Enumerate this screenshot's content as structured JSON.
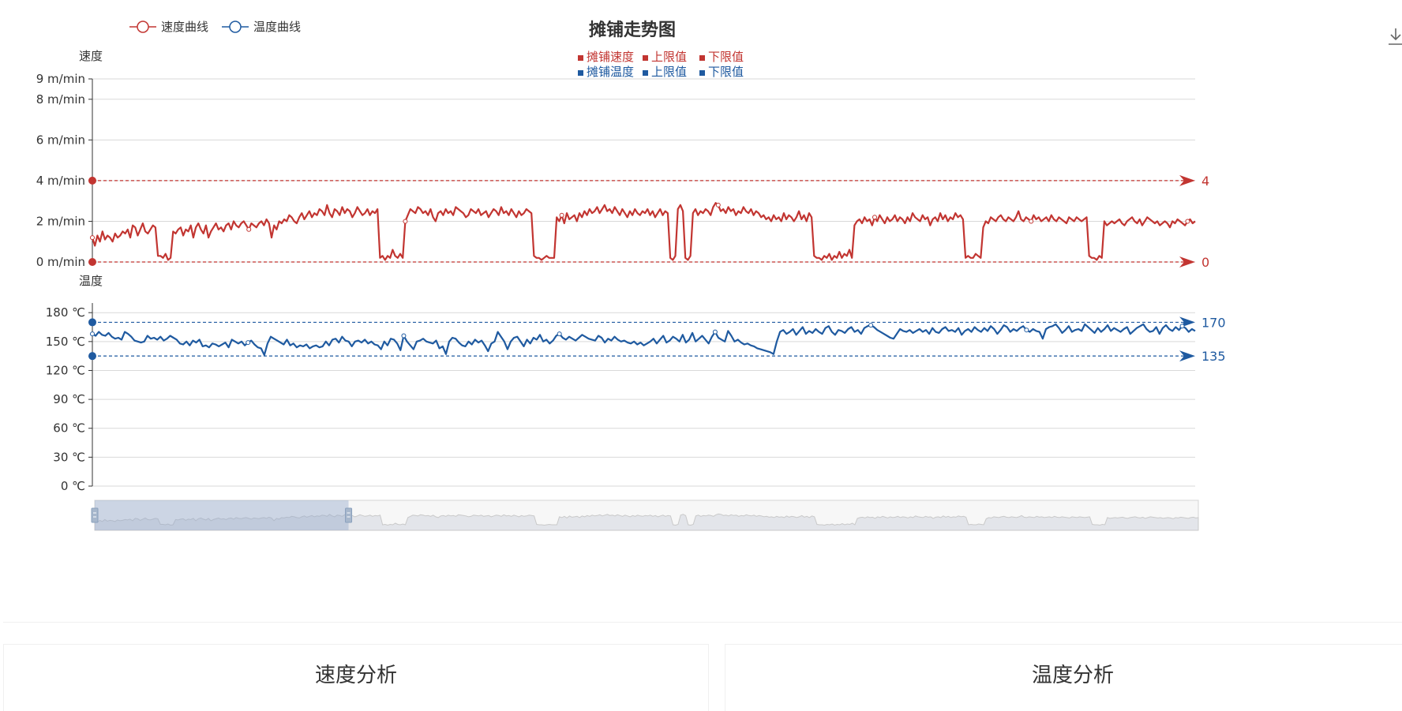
{
  "chart_data": {
    "type": "line",
    "title": "摊铺走势图",
    "legend": [
      {
        "label": "速度曲线",
        "color": "#c23531",
        "marker": "circle"
      },
      {
        "label": "温度曲线",
        "color": "#1f5aa0",
        "marker": "circle"
      }
    ],
    "legend_placement": "top-left",
    "limit_legend": {
      "speed": [
        "摊铺速度",
        "上限值",
        "下限值"
      ],
      "temperature": [
        "摊铺温度",
        "上限值",
        "下限值"
      ]
    },
    "grid": true,
    "dataZoom": {
      "start_fraction": 0.0,
      "end_fraction": 0.23
    },
    "speed": {
      "axis_label": "速度",
      "unit": "m/min",
      "ylim": [
        0,
        9
      ],
      "ticks": [
        {
          "value": 0,
          "label": "0 m/min"
        },
        {
          "value": 2,
          "label": "2 m/min"
        },
        {
          "value": 4,
          "label": "4 m/min"
        },
        {
          "value": 6,
          "label": "6 m/min"
        },
        {
          "value": 8,
          "label": "8 m/min"
        },
        {
          "value": 9,
          "label": "9 m/min"
        }
      ],
      "upper_limit": 4,
      "lower_limit": 0,
      "upper_label": "4",
      "lower_label": "0",
      "color": "#c23531",
      "values": [
        1.2,
        0.8,
        1.3,
        1.0,
        1.5,
        1.1,
        1.3,
        1.2,
        1.0,
        1.4,
        1.2,
        1.3,
        1.5,
        1.4,
        1.6,
        1.2,
        1.8,
        1.7,
        1.3,
        1.6,
        1.9,
        1.5,
        1.4,
        1.6,
        1.8,
        1.7,
        0.3,
        0.3,
        0.2,
        0.4,
        0.1,
        0.2,
        1.5,
        1.4,
        1.6,
        1.7,
        1.3,
        1.6,
        1.5,
        1.8,
        1.2,
        1.7,
        1.9,
        1.6,
        1.4,
        1.8,
        1.2,
        1.5,
        1.7,
        1.9,
        1.6,
        1.7,
        1.5,
        1.8,
        1.9,
        1.6,
        2.0,
        1.8,
        1.7,
        1.9,
        2.0,
        1.8,
        1.6,
        1.9,
        1.8,
        1.7,
        1.9,
        2.0,
        1.8,
        2.1,
        1.9,
        1.2,
        1.8,
        1.6,
        2.0,
        1.9,
        2.1,
        2.0,
        2.3,
        2.2,
        2.0,
        1.9,
        2.2,
        2.4,
        2.1,
        2.3,
        2.5,
        2.2,
        2.4,
        2.3,
        2.6,
        2.5,
        2.3,
        2.8,
        2.4,
        2.2,
        2.6,
        2.5,
        2.3,
        2.7,
        2.4,
        2.6,
        2.5,
        2.2,
        2.4,
        2.7,
        2.5,
        2.3,
        2.4,
        2.6,
        2.3,
        2.5,
        2.4,
        2.6,
        0.2,
        0.3,
        0.1,
        0.3,
        0.2,
        0.6,
        0.3,
        0.2,
        0.4,
        0.2,
        2.0,
        2.3,
        2.6,
        2.5,
        2.4,
        2.7,
        2.6,
        2.4,
        2.5,
        2.3,
        2.6,
        2.2,
        2.0,
        2.4,
        2.5,
        2.3,
        2.6,
        2.4,
        2.5,
        2.3,
        2.7,
        2.6,
        2.5,
        2.4,
        2.2,
        2.3,
        2.6,
        2.5,
        2.4,
        2.6,
        2.3,
        2.4,
        2.5,
        2.2,
        2.4,
        2.6,
        2.5,
        2.3,
        2.7,
        2.4,
        2.5,
        2.3,
        2.6,
        2.4,
        2.2,
        2.5,
        2.3,
        2.4,
        2.6,
        2.5,
        2.4,
        0.3,
        0.2,
        0.2,
        0.1,
        0.2,
        0.3,
        0.2,
        0.2,
        0.2,
        2.2,
        2.0,
        2.3,
        1.9,
        2.4,
        2.1,
        2.2,
        2.3,
        2.0,
        2.4,
        2.2,
        2.5,
        2.3,
        2.6,
        2.4,
        2.5,
        2.7,
        2.4,
        2.6,
        2.8,
        2.5,
        2.6,
        2.4,
        2.7,
        2.5,
        2.3,
        2.6,
        2.4,
        2.2,
        2.5,
        2.3,
        2.6,
        2.4,
        2.3,
        2.5,
        2.4,
        2.6,
        2.3,
        2.5,
        2.2,
        2.4,
        2.6,
        2.3,
        2.5,
        2.4,
        0.2,
        0.1,
        0.3,
        2.6,
        2.8,
        2.5,
        0.2,
        0.1,
        0.3,
        2.4,
        2.6,
        2.3,
        2.5,
        2.4,
        2.6,
        2.5,
        2.3,
        2.7,
        2.9,
        2.8,
        2.5,
        2.6,
        2.4,
        2.7,
        2.5,
        2.6,
        2.3,
        2.5,
        2.4,
        2.7,
        2.5,
        2.4,
        2.6,
        2.3,
        2.5,
        2.4,
        2.2,
        2.3,
        2.1,
        2.2,
        2.0,
        2.3,
        2.1,
        2.2,
        2.0,
        2.4,
        2.1,
        2.3,
        2.2,
        2.0,
        2.2,
        2.5,
        2.1,
        2.3,
        2.0,
        2.4,
        2.2,
        0.3,
        0.2,
        0.2,
        0.1,
        0.3,
        0.2,
        0.4,
        0.1,
        0.3,
        0.2,
        0.5,
        0.2,
        0.4,
        0.3,
        0.6,
        0.2,
        1.8,
        2.0,
        2.1,
        1.9,
        2.2,
        2.0,
        2.1,
        1.8,
        2.2,
        2.0,
        2.3,
        2.1,
        1.9,
        2.2,
        2.0,
        2.1,
        2.3,
        2.0,
        2.2,
        2.1,
        1.9,
        2.2,
        2.0,
        2.4,
        2.2,
        2.1,
        2.0,
        2.3,
        2.1,
        2.2,
        1.8,
        2.1,
        2.2,
        2.0,
        2.4,
        2.1,
        2.3,
        2.0,
        2.2,
        2.1,
        2.4,
        2.2,
        2.3,
        2.1,
        0.2,
        0.3,
        0.2,
        0.2,
        0.4,
        0.3,
        0.2,
        1.7,
        2.0,
        1.9,
        2.2,
        2.1,
        2.0,
        2.2,
        2.3,
        2.1,
        2.0,
        2.2,
        2.1,
        2.0,
        2.2,
        2.5,
        2.1,
        2.0,
        2.2,
        2.1,
        2.0,
        2.3,
        2.1,
        2.2,
        2.0,
        2.1,
        2.2,
        2.0,
        2.3,
        2.1,
        2.0,
        2.2,
        2.1,
        2.0,
        1.9,
        2.2,
        2.1,
        2.0,
        2.2,
        2.1,
        2.0,
        2.1,
        2.2,
        0.3,
        0.2,
        0.2,
        0.1,
        0.3,
        0.2,
        2.0,
        1.8,
        1.9,
        2.0,
        1.9,
        2.0,
        2.1,
        1.9,
        1.8,
        2.0,
        2.1,
        2.2,
        2.0,
        1.9,
        2.1,
        1.8,
        2.0,
        2.2,
        2.1,
        2.0,
        1.9,
        2.0,
        1.8,
        1.9,
        2.0,
        1.9,
        1.7,
        2.0,
        1.9,
        2.1,
        2.0,
        1.9,
        1.8,
        2.0,
        2.1,
        1.9,
        2.0
      ]
    },
    "temperature": {
      "axis_label": "温度",
      "unit": "℃",
      "ylim": [
        0,
        190
      ],
      "ticks": [
        {
          "value": 0,
          "label": "0 ℃"
        },
        {
          "value": 30,
          "label": "30 ℃"
        },
        {
          "value": 60,
          "label": "60 ℃"
        },
        {
          "value": 90,
          "label": "90 ℃"
        },
        {
          "value": 120,
          "label": "120 ℃"
        },
        {
          "value": 150,
          "label": "150 ℃"
        },
        {
          "value": 180,
          "label": "180 ℃"
        }
      ],
      "upper_limit": 170,
      "lower_limit": 135,
      "upper_label": "170",
      "lower_label": "135",
      "color": "#1f5aa0",
      "values": [
        158,
        156,
        160,
        157,
        156,
        159,
        155,
        153,
        154,
        152,
        160,
        158,
        155,
        151,
        150,
        149,
        150,
        156,
        153,
        154,
        152,
        155,
        151,
        153,
        156,
        154,
        152,
        148,
        147,
        150,
        146,
        151,
        149,
        152,
        145,
        146,
        144,
        148,
        147,
        145,
        147,
        149,
        144,
        152,
        150,
        148,
        150,
        146,
        149,
        151,
        147,
        144,
        143,
        136,
        148,
        155,
        153,
        151,
        149,
        147,
        152,
        146,
        148,
        144,
        146,
        145,
        147,
        143,
        145,
        146,
        144,
        145,
        150,
        146,
        152,
        153,
        149,
        155,
        151,
        150,
        145,
        150,
        151,
        149,
        152,
        148,
        150,
        147,
        146,
        142,
        150,
        146,
        153,
        152,
        148,
        141,
        156,
        150,
        146,
        142,
        150,
        151,
        153,
        150,
        149,
        148,
        151,
        143,
        145,
        137,
        150,
        154,
        153,
        149,
        146,
        145,
        150,
        147,
        152,
        149,
        151,
        146,
        140,
        148,
        150,
        160,
        155,
        150,
        142,
        150,
        154,
        155,
        150,
        145,
        152,
        148,
        154,
        152,
        157,
        150,
        152,
        148,
        151,
        156,
        158,
        154,
        152,
        155,
        153,
        151,
        154,
        157,
        155,
        153,
        152,
        151,
        156,
        154,
        149,
        153,
        151,
        155,
        152,
        150,
        151,
        149,
        148,
        150,
        147,
        149,
        146,
        148,
        150,
        153,
        148,
        152,
        156,
        149,
        151,
        155,
        153,
        150,
        157,
        149,
        152,
        159,
        150,
        153,
        156,
        152,
        148,
        155,
        160,
        154,
        152,
        150,
        161,
        156,
        150,
        152,
        149,
        147,
        148,
        146,
        145,
        143,
        142,
        141,
        140,
        139,
        137,
        150,
        160,
        162,
        158,
        160,
        163,
        157,
        161,
        165,
        158,
        161,
        159,
        163,
        160,
        158,
        164,
        166,
        160,
        157,
        162,
        161,
        159,
        163,
        165,
        160,
        162,
        158,
        164,
        166,
        167,
        165,
        162,
        160,
        158,
        156,
        154,
        153,
        158,
        163,
        161,
        160,
        162,
        159,
        161,
        163,
        160,
        162,
        158,
        164,
        160,
        159,
        163,
        165,
        161,
        162,
        160,
        164,
        157,
        161,
        163,
        160,
        165,
        162,
        160,
        164,
        161,
        166,
        163,
        158,
        162,
        167,
        165,
        160,
        163,
        161,
        164,
        166,
        162,
        160,
        163,
        161,
        160,
        153,
        163,
        165,
        166,
        168,
        164,
        159,
        162,
        166,
        160,
        162,
        163,
        161,
        168,
        165,
        162,
        159,
        164,
        160,
        163,
        167,
        161,
        164,
        162,
        160,
        163,
        165,
        158,
        161,
        164,
        166,
        168,
        163,
        160,
        161,
        165,
        158,
        164,
        167,
        163,
        161,
        165,
        162,
        166,
        164,
        160,
        163,
        161
      ]
    }
  },
  "panels": {
    "speed_title": "速度分析",
    "temperature_title": "温度分析"
  },
  "toolbar": {
    "download_icon": "download-icon"
  }
}
